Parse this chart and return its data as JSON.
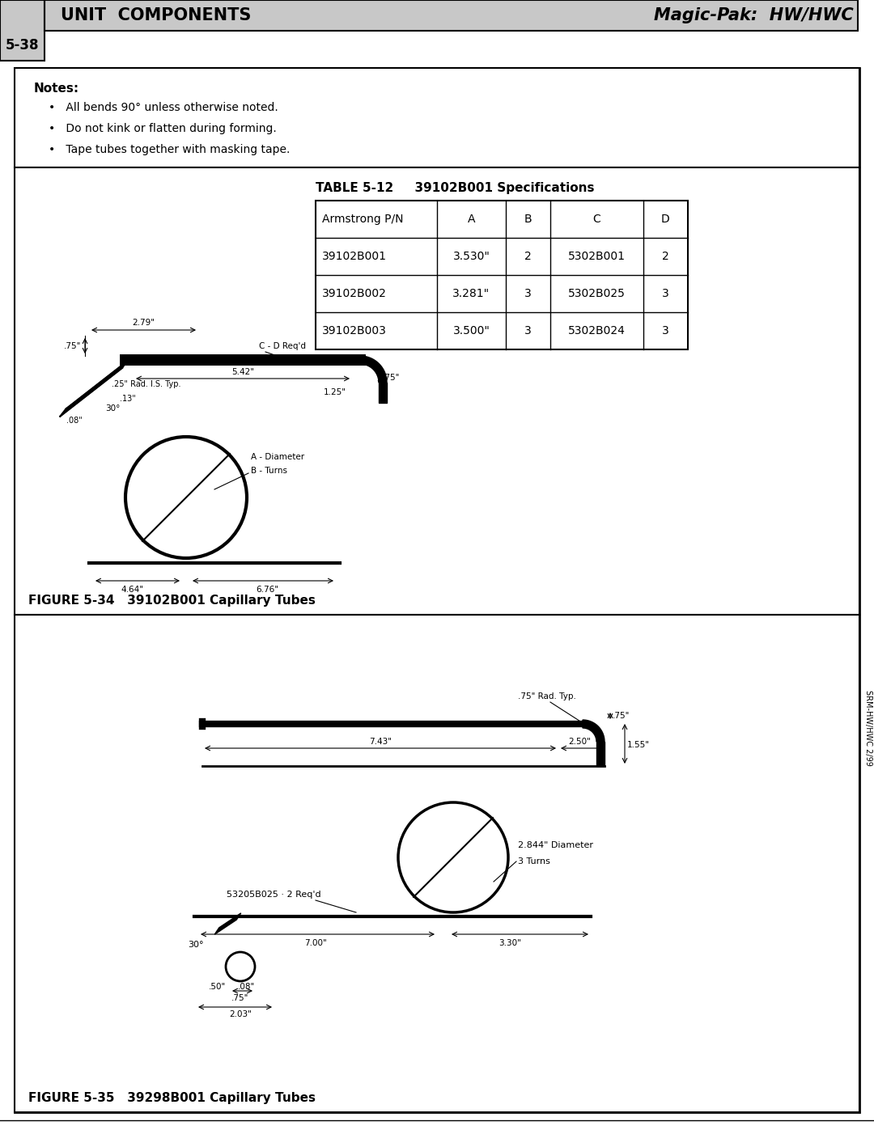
{
  "page_title_left": "UNIT  COMPONENTS",
  "page_title_right": "Magic-Pak:  HW/HWC",
  "page_number": "5-38",
  "notes_title": "Notes:",
  "notes": [
    "All bends 90° unless otherwise noted.",
    "Do not kink or flatten during forming.",
    "Tape tubes together with masking tape."
  ],
  "table_title": "TABLE 5-12     39102B001 Specifications",
  "table_headers": [
    "Armstrong P/N",
    "A",
    "B",
    "C",
    "D"
  ],
  "table_rows": [
    [
      "39102B001",
      "3.530\"",
      "2",
      "5302B001",
      "2"
    ],
    [
      "39102B002",
      "3.281\"",
      "3",
      "5302B025",
      "3"
    ],
    [
      "39102B003",
      "3.500\"",
      "3",
      "5302B024",
      "3"
    ]
  ],
  "fig1_caption": "FIGURE 5-34   39102B001 Capillary Tubes",
  "fig2_caption": "FIGURE 5-35   39298B001 Capillary Tubes",
  "sidebar_text": "SRM-HW/HWC 2/99",
  "header_bg": "#c8c8c8",
  "body_bg": "#ffffff"
}
